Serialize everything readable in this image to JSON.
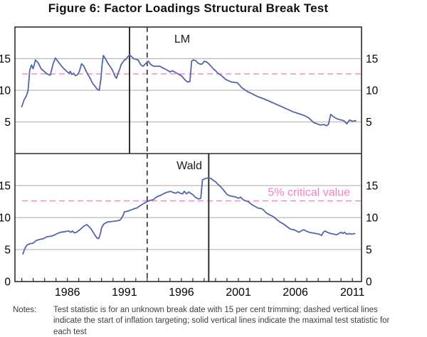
{
  "title": "Figure 6: Factor Loadings Structural Break Test",
  "notes": {
    "label": "Notes:",
    "text": "Test statistic is for an unknown break date with 15 per cent trimming; dashed vertical lines indicate the start of inflation targeting; solid vertical lines indicate the maximal test statistic for each test"
  },
  "colors": {
    "series": "#5663ad",
    "critical": "#ee82c4",
    "grid": "#b9b9b9",
    "frame": "#2e2e2e",
    "axis_text": "#000000",
    "notes_text": "#3e3e47"
  },
  "x_axis": {
    "range": [
      1981.4,
      2011.8
    ],
    "tick_start": 1982,
    "tick_end": 2011,
    "labels": [
      1986,
      1991,
      1996,
      2001,
      2006,
      2011
    ]
  },
  "chart_data": [
    {
      "type": "line",
      "panel": "top",
      "title": "LM",
      "ylim": [
        0,
        20
      ],
      "yticks": [
        5,
        10,
        15
      ],
      "grid": true,
      "critical_value": 12.6,
      "vlines": [
        {
          "x": 1991.45,
          "style": "solid",
          "meaning": "maximal LM test statistic"
        },
        {
          "x": 1993.0,
          "style": "dashed",
          "meaning": "start of inflation targeting"
        }
      ],
      "series": [
        {
          "name": "LM test statistic",
          "points": [
            [
              1982.0,
              7.4
            ],
            [
              1982.2,
              8.5
            ],
            [
              1982.4,
              9.1
            ],
            [
              1982.55,
              9.9
            ],
            [
              1982.7,
              13.2
            ],
            [
              1982.85,
              14.0
            ],
            [
              1983.0,
              13.4
            ],
            [
              1983.2,
              14.8
            ],
            [
              1983.45,
              14.3
            ],
            [
              1983.7,
              13.4
            ],
            [
              1983.95,
              13.0
            ],
            [
              1984.2,
              12.6
            ],
            [
              1984.5,
              12.4
            ],
            [
              1984.75,
              14.2
            ],
            [
              1984.95,
              15.1
            ],
            [
              1985.2,
              14.5
            ],
            [
              1985.5,
              13.8
            ],
            [
              1985.75,
              13.3
            ],
            [
              1986.0,
              12.9
            ],
            [
              1986.15,
              12.7
            ],
            [
              1986.25,
              13.0
            ],
            [
              1986.4,
              12.5
            ],
            [
              1986.55,
              12.7
            ],
            [
              1986.7,
              12.3
            ],
            [
              1986.9,
              12.5
            ],
            [
              1987.05,
              13.0
            ],
            [
              1987.25,
              14.2
            ],
            [
              1987.45,
              13.8
            ],
            [
              1987.6,
              13.2
            ],
            [
              1987.8,
              12.5
            ],
            [
              1988.0,
              11.9
            ],
            [
              1988.15,
              11.3
            ],
            [
              1988.3,
              10.9
            ],
            [
              1988.45,
              10.6
            ],
            [
              1988.6,
              10.2
            ],
            [
              1988.8,
              10.0
            ],
            [
              1988.95,
              11.9
            ],
            [
              1989.05,
              14.2
            ],
            [
              1989.15,
              15.5
            ],
            [
              1989.3,
              15.1
            ],
            [
              1989.45,
              14.6
            ],
            [
              1989.65,
              14.0
            ],
            [
              1989.85,
              13.5
            ],
            [
              1990.0,
              13.0
            ],
            [
              1990.15,
              12.3
            ],
            [
              1990.3,
              11.9
            ],
            [
              1990.45,
              12.7
            ],
            [
              1990.6,
              13.4
            ],
            [
              1990.7,
              14.0
            ],
            [
              1990.85,
              14.4
            ],
            [
              1991.0,
              14.8
            ],
            [
              1991.15,
              14.9
            ],
            [
              1991.3,
              15.3
            ],
            [
              1991.45,
              15.6
            ],
            [
              1991.65,
              15.3
            ],
            [
              1991.8,
              15.0
            ],
            [
              1992.0,
              14.9
            ],
            [
              1992.2,
              14.8
            ],
            [
              1992.45,
              14.0
            ],
            [
              1992.65,
              13.8
            ],
            [
              1992.85,
              14.2
            ],
            [
              1993.1,
              14.6
            ],
            [
              1993.35,
              14.0
            ],
            [
              1993.6,
              13.8
            ],
            [
              1994.1,
              13.8
            ],
            [
              1994.4,
              13.5
            ],
            [
              1994.75,
              13.2
            ],
            [
              1995.0,
              12.9
            ],
            [
              1995.2,
              13.1
            ],
            [
              1995.5,
              12.8
            ],
            [
              1995.8,
              12.5
            ],
            [
              1996.0,
              12.3
            ],
            [
              1996.2,
              11.9
            ],
            [
              1996.4,
              11.5
            ],
            [
              1996.6,
              11.3
            ],
            [
              1996.75,
              11.4
            ],
            [
              1996.9,
              14.6
            ],
            [
              1997.05,
              14.8
            ],
            [
              1997.25,
              14.7
            ],
            [
              1997.45,
              14.3
            ],
            [
              1997.7,
              14.1
            ],
            [
              1997.85,
              14.2
            ],
            [
              1998.0,
              14.6
            ],
            [
              1998.2,
              14.5
            ],
            [
              1998.4,
              14.2
            ],
            [
              1998.6,
              13.8
            ],
            [
              1998.8,
              13.4
            ],
            [
              1999.05,
              13.0
            ],
            [
              1999.2,
              12.7
            ],
            [
              1999.45,
              12.4
            ],
            [
              1999.9,
              11.7
            ],
            [
              2000.4,
              11.3
            ],
            [
              2000.9,
              11.2
            ],
            [
              2001.3,
              10.4
            ],
            [
              2001.8,
              9.8
            ],
            [
              2002.25,
              9.4
            ],
            [
              2002.7,
              9.0
            ],
            [
              2003.3,
              8.6
            ],
            [
              2003.8,
              8.2
            ],
            [
              2004.3,
              7.8
            ],
            [
              2004.8,
              7.4
            ],
            [
              2005.3,
              7.0
            ],
            [
              2005.8,
              6.6
            ],
            [
              2006.3,
              6.3
            ],
            [
              2006.8,
              6.0
            ],
            [
              2007.2,
              5.6
            ],
            [
              2007.6,
              4.9
            ],
            [
              2007.9,
              4.7
            ],
            [
              2008.2,
              4.5
            ],
            [
              2008.5,
              4.6
            ],
            [
              2008.7,
              4.4
            ],
            [
              2008.9,
              4.6
            ],
            [
              2009.1,
              6.2
            ],
            [
              2009.35,
              5.8
            ],
            [
              2009.65,
              5.5
            ],
            [
              2010.0,
              5.3
            ],
            [
              2010.25,
              5.2
            ],
            [
              2010.5,
              4.7
            ],
            [
              2010.75,
              5.3
            ],
            [
              2011.0,
              5.1
            ],
            [
              2011.3,
              5.2
            ]
          ]
        }
      ]
    },
    {
      "type": "line",
      "panel": "bottom",
      "title": "Wald",
      "ylim": [
        0,
        20
      ],
      "yticks": [
        0,
        5,
        10,
        15
      ],
      "grid": true,
      "critical_value": 12.6,
      "critical_label": "5% critical value",
      "vlines": [
        {
          "x": 1993.0,
          "style": "dashed",
          "meaning": "start of inflation targeting"
        },
        {
          "x": 1998.4,
          "style": "solid",
          "meaning": "maximal Wald test statistic"
        }
      ],
      "series": [
        {
          "name": "Wald test statistic",
          "points": [
            [
              1982.1,
              4.3
            ],
            [
              1982.25,
              5.1
            ],
            [
              1982.45,
              5.7
            ],
            [
              1982.7,
              5.9
            ],
            [
              1983.0,
              6.0
            ],
            [
              1983.25,
              6.4
            ],
            [
              1983.6,
              6.6
            ],
            [
              1983.9,
              6.7
            ],
            [
              1984.2,
              7.0
            ],
            [
              1984.6,
              7.1
            ],
            [
              1984.9,
              7.3
            ],
            [
              1985.1,
              7.5
            ],
            [
              1985.4,
              7.7
            ],
            [
              1985.8,
              7.8
            ],
            [
              1986.1,
              7.9
            ],
            [
              1986.3,
              7.7
            ],
            [
              1986.45,
              7.9
            ],
            [
              1986.6,
              7.6
            ],
            [
              1986.8,
              7.7
            ],
            [
              1987.1,
              8.1
            ],
            [
              1987.4,
              8.6
            ],
            [
              1987.7,
              8.9
            ],
            [
              1988.0,
              8.4
            ],
            [
              1988.2,
              7.9
            ],
            [
              1988.4,
              7.3
            ],
            [
              1988.6,
              6.8
            ],
            [
              1988.75,
              6.7
            ],
            [
              1988.9,
              7.5
            ],
            [
              1989.0,
              8.4
            ],
            [
              1989.2,
              9.0
            ],
            [
              1989.5,
              9.3
            ],
            [
              1990.0,
              9.4
            ],
            [
              1990.4,
              9.5
            ],
            [
              1990.6,
              9.6
            ],
            [
              1990.75,
              9.9
            ],
            [
              1990.9,
              10.4
            ],
            [
              1991.0,
              10.9
            ],
            [
              1991.3,
              11.0
            ],
            [
              1991.6,
              11.2
            ],
            [
              1991.9,
              11.4
            ],
            [
              1992.1,
              11.5
            ],
            [
              1992.35,
              11.8
            ],
            [
              1992.6,
              12.1
            ],
            [
              1992.8,
              12.3
            ],
            [
              1993.0,
              12.5
            ],
            [
              1993.3,
              12.7
            ],
            [
              1993.55,
              12.8
            ],
            [
              1993.8,
              13.2
            ],
            [
              1994.2,
              13.5
            ],
            [
              1994.4,
              13.7
            ],
            [
              1994.65,
              13.9
            ],
            [
              1994.85,
              14.0
            ],
            [
              1995.05,
              14.1
            ],
            [
              1995.3,
              13.9
            ],
            [
              1995.5,
              13.8
            ],
            [
              1995.7,
              14.0
            ],
            [
              1995.9,
              13.8
            ],
            [
              1996.1,
              13.7
            ],
            [
              1996.25,
              14.1
            ],
            [
              1996.45,
              13.7
            ],
            [
              1996.65,
              14.0
            ],
            [
              1996.8,
              13.8
            ],
            [
              1997.0,
              13.6
            ],
            [
              1997.2,
              13.2
            ],
            [
              1997.5,
              12.9
            ],
            [
              1997.7,
              13.0
            ],
            [
              1997.85,
              15.9
            ],
            [
              1998.1,
              16.1
            ],
            [
              1998.35,
              16.2
            ],
            [
              1998.6,
              16.1
            ],
            [
              1998.8,
              15.8
            ],
            [
              1999.0,
              15.6
            ],
            [
              1999.2,
              15.2
            ],
            [
              1999.45,
              14.8
            ],
            [
              1999.7,
              14.3
            ],
            [
              2000.0,
              13.6
            ],
            [
              2000.25,
              13.4
            ],
            [
              2000.5,
              13.3
            ],
            [
              2000.8,
              13.2
            ],
            [
              2001.0,
              13.0
            ],
            [
              2001.2,
              13.2
            ],
            [
              2001.4,
              12.8
            ],
            [
              2001.65,
              12.6
            ],
            [
              2001.85,
              12.5
            ],
            [
              2002.05,
              12.2
            ],
            [
              2002.3,
              11.9
            ],
            [
              2002.7,
              11.5
            ],
            [
              2003.0,
              11.4
            ],
            [
              2003.2,
              11.2
            ],
            [
              2003.4,
              10.8
            ],
            [
              2003.65,
              10.5
            ],
            [
              2003.9,
              10.3
            ],
            [
              2004.1,
              10.1
            ],
            [
              2004.35,
              9.7
            ],
            [
              2004.65,
              9.3
            ],
            [
              2004.95,
              9.0
            ],
            [
              2005.25,
              8.6
            ],
            [
              2005.55,
              8.2
            ],
            [
              2005.85,
              8.1
            ],
            [
              2006.1,
              7.9
            ],
            [
              2006.3,
              7.7
            ],
            [
              2006.5,
              7.9
            ],
            [
              2006.7,
              8.1
            ],
            [
              2006.95,
              7.9
            ],
            [
              2007.2,
              7.7
            ],
            [
              2007.5,
              7.6
            ],
            [
              2007.8,
              7.5
            ],
            [
              2008.1,
              7.4
            ],
            [
              2008.3,
              7.2
            ],
            [
              2008.45,
              7.7
            ],
            [
              2008.6,
              7.9
            ],
            [
              2008.8,
              7.7
            ],
            [
              2009.1,
              7.5
            ],
            [
              2009.4,
              7.4
            ],
            [
              2009.6,
              7.3
            ],
            [
              2009.8,
              7.5
            ],
            [
              2010.0,
              7.7
            ],
            [
              2010.15,
              7.5
            ],
            [
              2010.3,
              7.7
            ],
            [
              2010.5,
              7.4
            ],
            [
              2010.7,
              7.5
            ],
            [
              2010.95,
              7.4
            ],
            [
              2011.2,
              7.5
            ]
          ]
        }
      ]
    }
  ]
}
